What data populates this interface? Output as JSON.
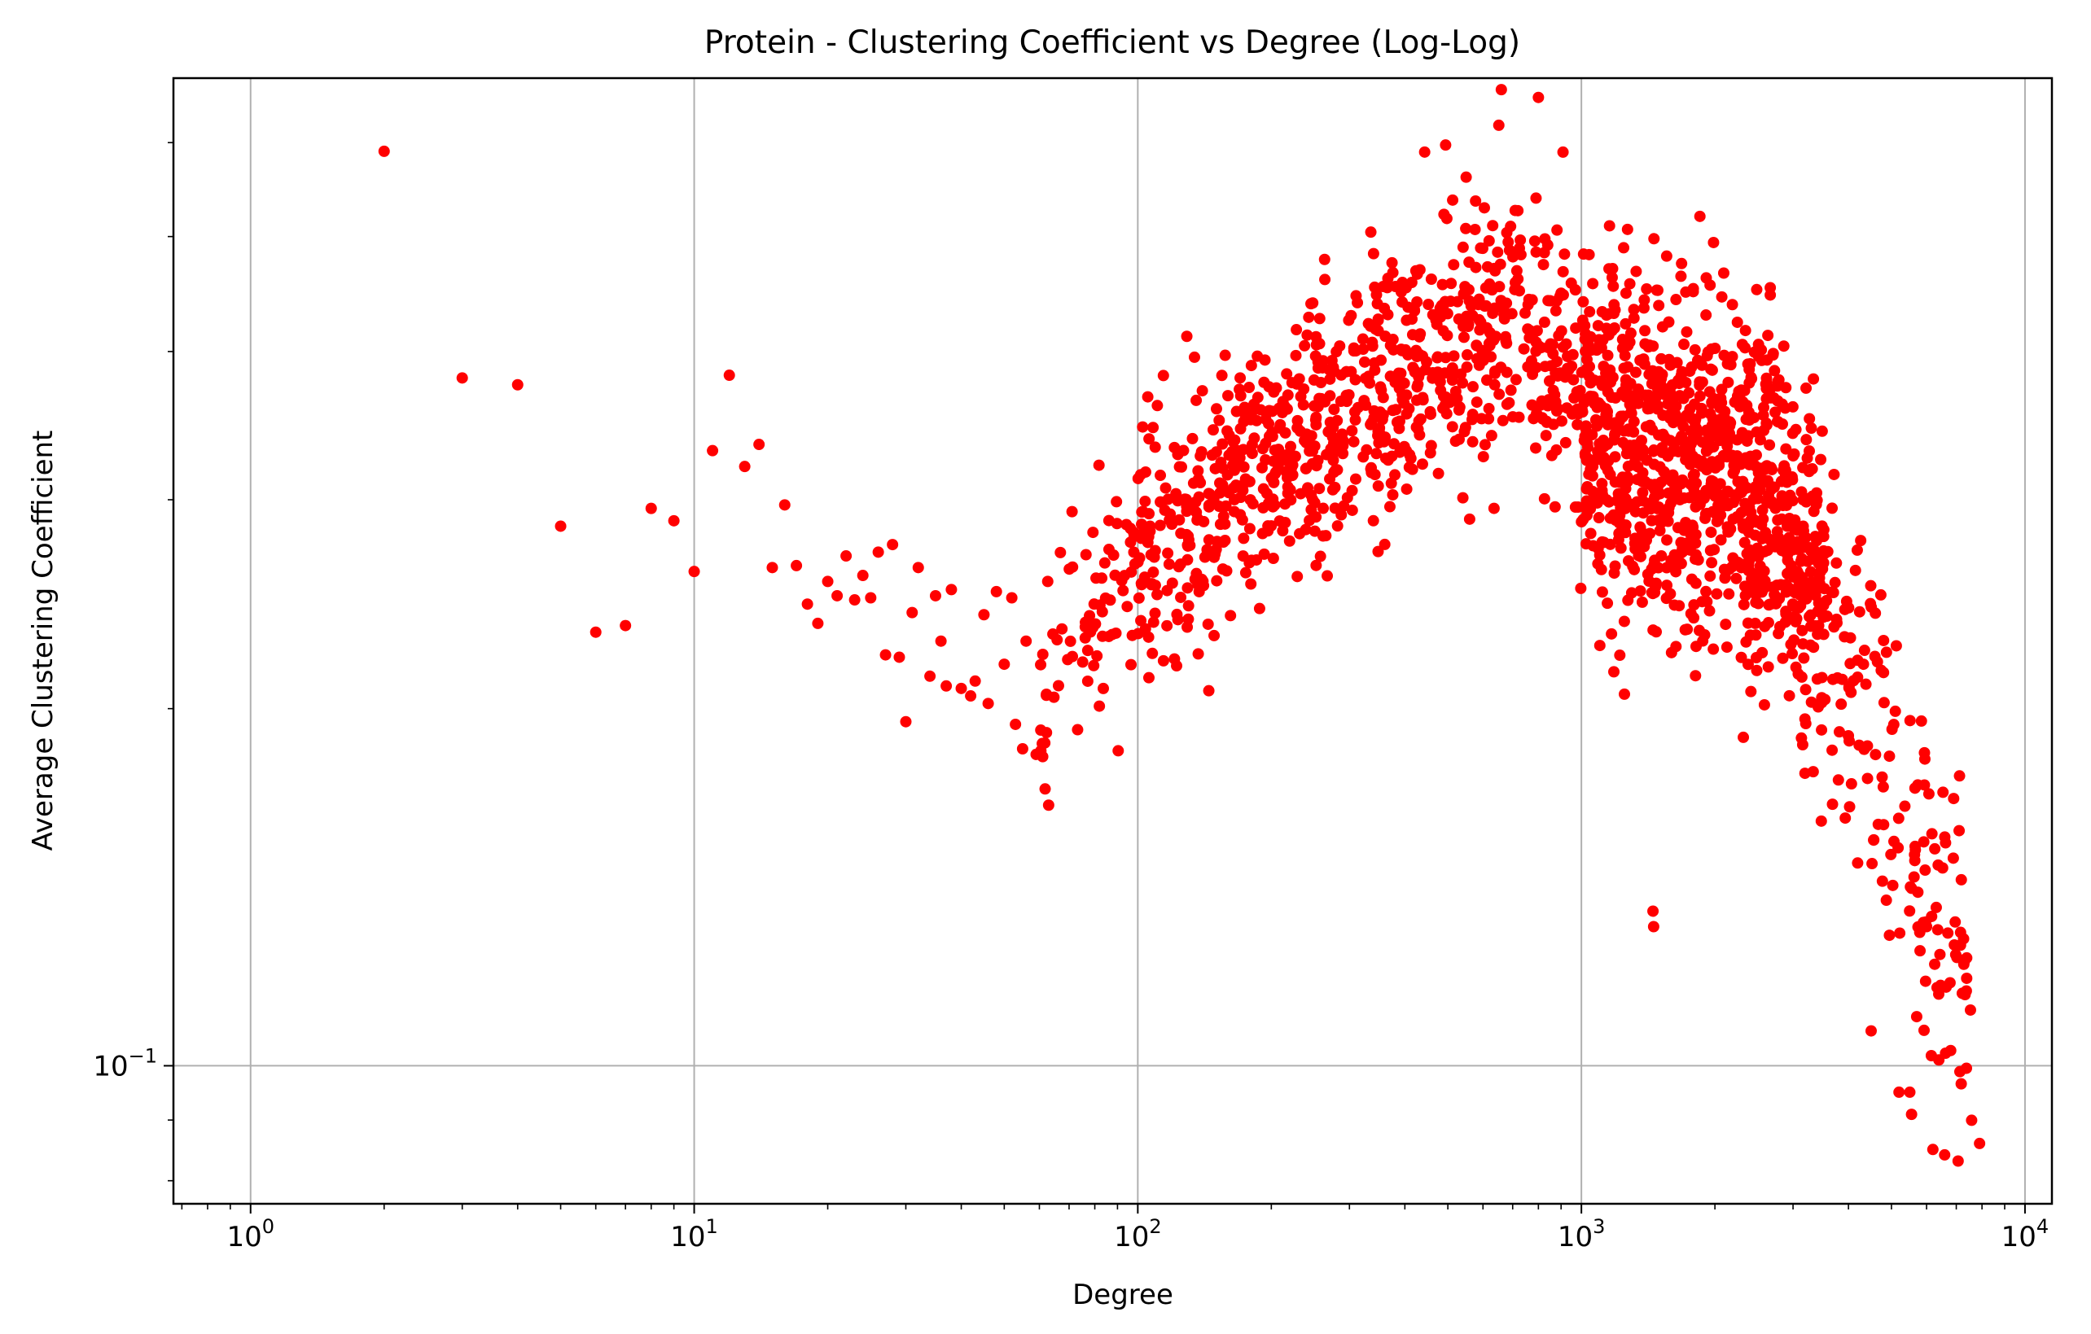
{
  "chart_data": {
    "type": "scatter",
    "title": "Protein - Clustering Coefficient vs Degree (Log-Log)",
    "xlabel": "Degree",
    "ylabel": "Average Clustering Coefficient",
    "xscale": "log",
    "yscale": "log",
    "xlim": [
      0.67,
      11500
    ],
    "ylim": [
      0.0765,
      0.68
    ],
    "x_tick_labels": [
      {
        "value": 1,
        "base": "10",
        "exp": "0"
      },
      {
        "value": 10,
        "base": "10",
        "exp": "1"
      },
      {
        "value": 100,
        "base": "10",
        "exp": "2"
      },
      {
        "value": 1000,
        "base": "10",
        "exp": "3"
      },
      {
        "value": 10000,
        "base": "10",
        "exp": "4"
      }
    ],
    "y_tick_labels": [
      {
        "value": 0.1,
        "base": "10",
        "exp": "−1"
      }
    ],
    "grid": true,
    "marker_color": "#ff0000",
    "points": [
      [
        2,
        0.59
      ],
      [
        3,
        0.38
      ],
      [
        4,
        0.375
      ],
      [
        5,
        0.285
      ],
      [
        6,
        0.232
      ],
      [
        7,
        0.235
      ],
      [
        8,
        0.295
      ],
      [
        9,
        0.288
      ],
      [
        10,
        0.261
      ],
      [
        11,
        0.33
      ],
      [
        12,
        0.382
      ],
      [
        13,
        0.32
      ],
      [
        14,
        0.334
      ],
      [
        15,
        0.263
      ],
      [
        16,
        0.297
      ],
      [
        17,
        0.264
      ],
      [
        18,
        0.245
      ],
      [
        19,
        0.236
      ],
      [
        20,
        0.256
      ],
      [
        21,
        0.249
      ],
      [
        22,
        0.269
      ],
      [
        23,
        0.247
      ],
      [
        24,
        0.259
      ],
      [
        25,
        0.248
      ],
      [
        26,
        0.271
      ],
      [
        27,
        0.222
      ],
      [
        28,
        0.275
      ],
      [
        29,
        0.221
      ],
      [
        30,
        0.195
      ],
      [
        31,
        0.241
      ],
      [
        32,
        0.263
      ],
      [
        34,
        0.213
      ],
      [
        35,
        0.249
      ],
      [
        36,
        0.228
      ],
      [
        37,
        0.209
      ],
      [
        38,
        0.252
      ],
      [
        40,
        0.208
      ],
      [
        42,
        0.205
      ],
      [
        43,
        0.211
      ],
      [
        45,
        0.24
      ],
      [
        46,
        0.202
      ],
      [
        48,
        0.251
      ],
      [
        50,
        0.218
      ],
      [
        52,
        0.248
      ],
      [
        53,
        0.194
      ],
      [
        55,
        0.185
      ],
      [
        56,
        0.228
      ],
      [
        59,
        0.183
      ]
    ]
  }
}
